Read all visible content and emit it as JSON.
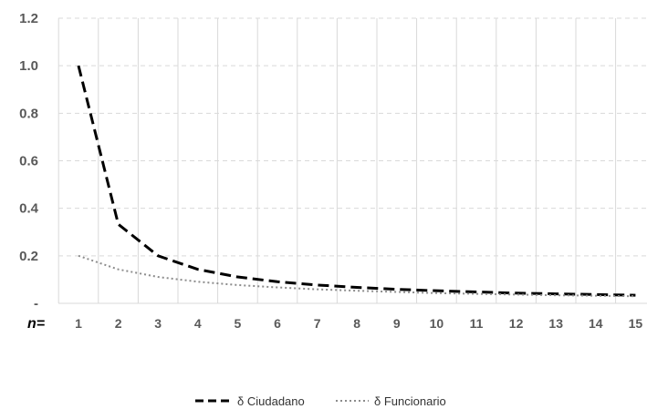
{
  "chart_data": {
    "type": "line",
    "x_prefix_label": "n=",
    "x": [
      1,
      2,
      3,
      4,
      5,
      6,
      7,
      8,
      9,
      10,
      11,
      12,
      13,
      14,
      15
    ],
    "x_tick_labels": [
      "1",
      "2",
      "3",
      "4",
      "5",
      "6",
      "7",
      "8",
      "9",
      "10",
      "11",
      "12",
      "13",
      "14",
      "15"
    ],
    "y_tick_labels": [
      "-",
      "0.2",
      "0.4",
      "0.6",
      "0.8",
      "1.0",
      "1.2"
    ],
    "y_ticks": [
      0,
      0.2,
      0.4,
      0.6,
      0.8,
      1.0,
      1.2
    ],
    "ylim": [
      0,
      1.2
    ],
    "grid": {
      "horizontal": "dashed",
      "vertical": "solid"
    },
    "legend_position": "bottom",
    "series": [
      {
        "name": "δ Ciudadano",
        "style": "dashed",
        "color": "#000000",
        "values": [
          1.0,
          0.333,
          0.2,
          0.143,
          0.111,
          0.091,
          0.077,
          0.067,
          0.059,
          0.053,
          0.048,
          0.043,
          0.04,
          0.037,
          0.034
        ]
      },
      {
        "name": "δ Funcionario",
        "style": "dotted",
        "color": "#8c8c8c",
        "values": [
          0.2,
          0.143,
          0.111,
          0.091,
          0.077,
          0.067,
          0.059,
          0.053,
          0.048,
          0.043,
          0.04,
          0.037,
          0.034,
          0.032,
          0.03
        ]
      }
    ]
  }
}
